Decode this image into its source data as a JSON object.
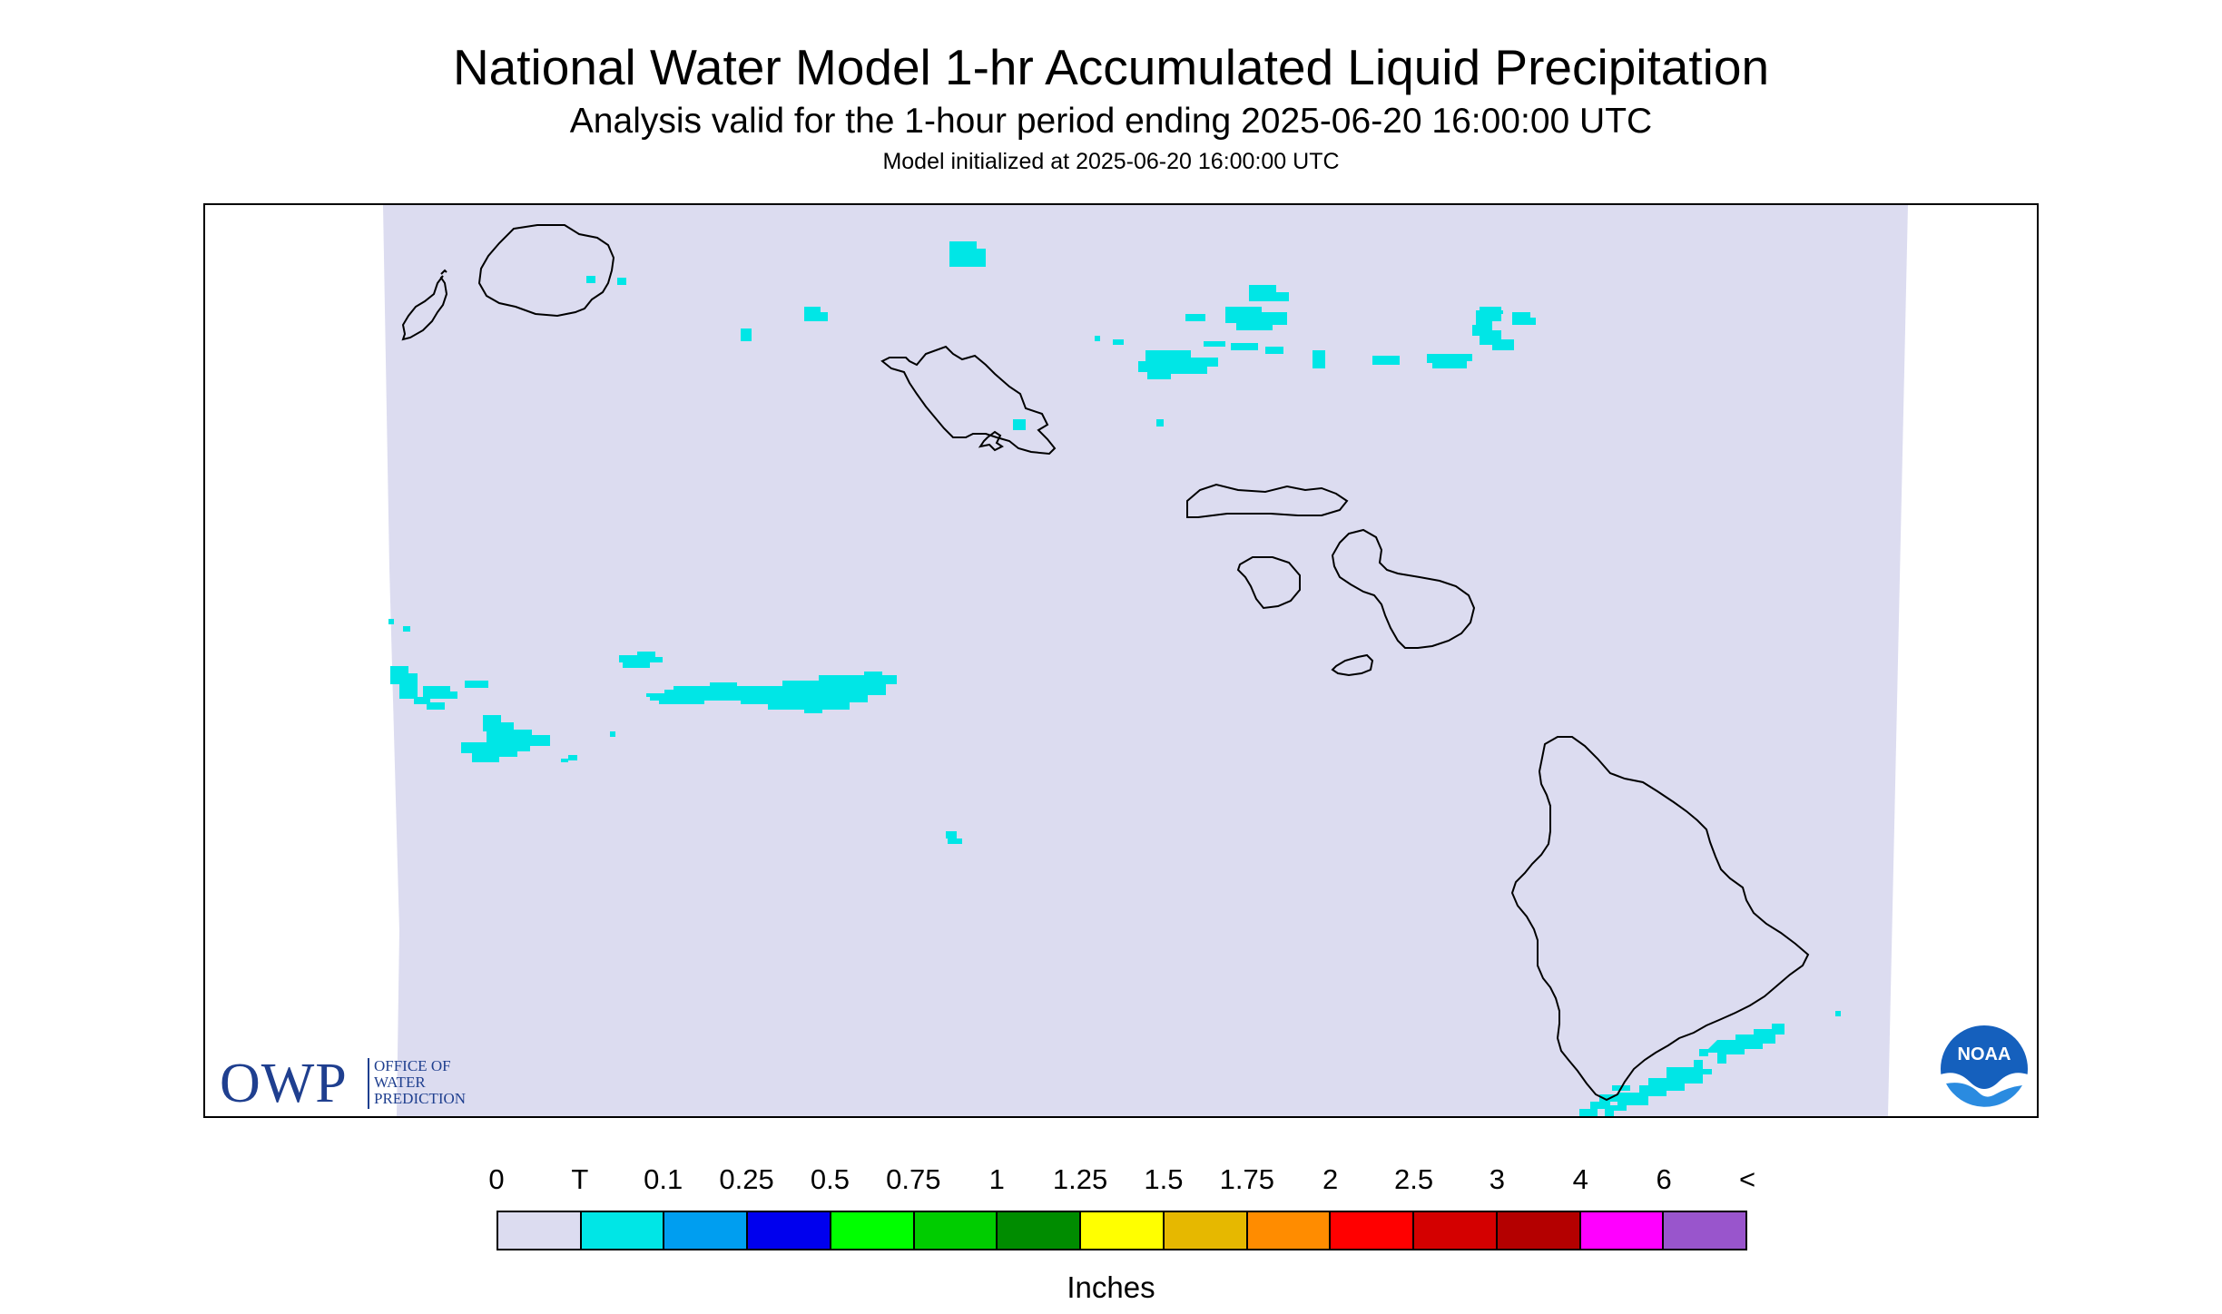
{
  "header": {
    "title": "National Water Model 1-hr Accumulated Liquid Precipitation",
    "subtitle": "Analysis valid for the 1-hour period ending 2025-06-20 16:00:00 UTC",
    "init_line": "Model initialized at 2025-06-20 16:00:00 UTC"
  },
  "map": {
    "region": "Hawaiian Islands",
    "data_area_color": "#dcdcf0",
    "coastline_color": "#000000",
    "precip_color": "#00e6e6"
  },
  "logos": {
    "owp_abbr": "OWP",
    "owp_line1": "OFFICE OF",
    "owp_line2": "WATER",
    "owp_line3": "PREDICTION",
    "noaa_text": "NOAA",
    "owp_color": "#1f3f8f",
    "noaa_color": "#1560bd"
  },
  "legend": {
    "labels": [
      "0",
      "T",
      "0.1",
      "0.25",
      "0.5",
      "0.75",
      "1",
      "1.25",
      "1.5",
      "1.75",
      "2",
      "2.5",
      "3",
      "4",
      "6",
      "<"
    ],
    "colors": [
      "#dcdcf0",
      "#00e6e6",
      "#009ef0",
      "#0000ee",
      "#00ff00",
      "#00cc00",
      "#008c00",
      "#ffff00",
      "#e6b800",
      "#ff8c00",
      "#ff0000",
      "#d40000",
      "#b40000",
      "#ff00ff",
      "#9955cc"
    ],
    "units": "Inches"
  }
}
